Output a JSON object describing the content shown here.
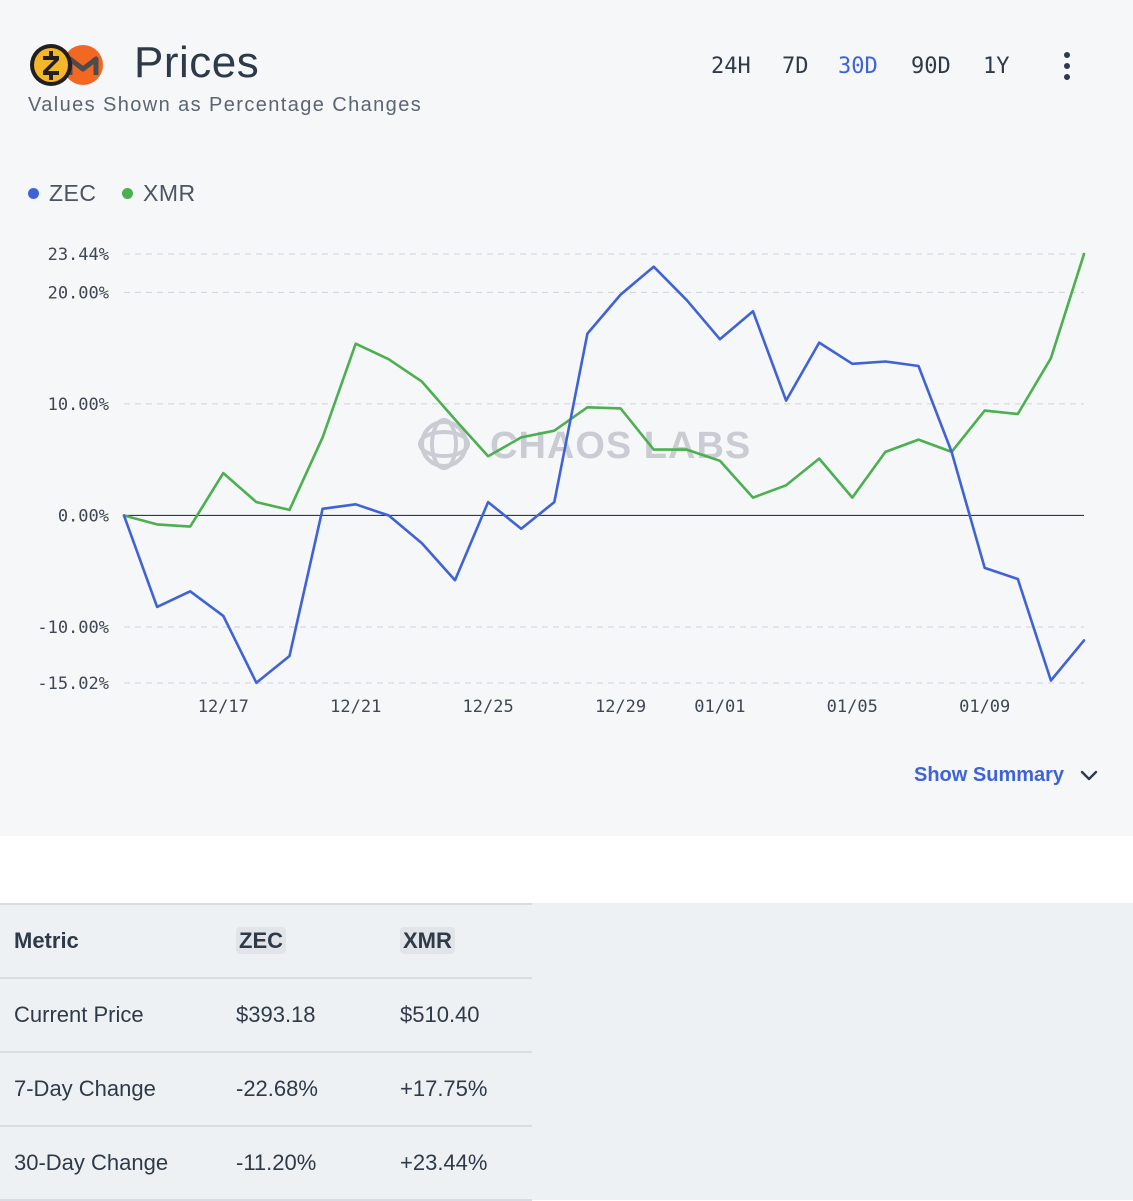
{
  "header": {
    "title": "Prices",
    "subtitle": "Values Shown as Percentage Changes",
    "ranges": [
      {
        "label": "24H",
        "active": false
      },
      {
        "label": "7D",
        "active": false
      },
      {
        "label": "30D",
        "active": true
      },
      {
        "label": "90D",
        "active": false
      },
      {
        "label": "1Y",
        "active": false
      }
    ]
  },
  "colors": {
    "zec": "#3f63d6",
    "xmr": "#4caf50",
    "accent": "#3f63d6",
    "zec_logo": "#f4b728",
    "xmr_logo": "#f26822"
  },
  "watermark": "CHAOS LABS",
  "summary": {
    "label": "Show Summary"
  },
  "chart_data": {
    "type": "line",
    "x": [
      "12/14",
      "12/15",
      "12/16",
      "12/17",
      "12/18",
      "12/19",
      "12/20",
      "12/21",
      "12/22",
      "12/23",
      "12/24",
      "12/25",
      "12/26",
      "12/27",
      "12/28",
      "12/29",
      "12/30",
      "12/31",
      "01/01",
      "01/02",
      "01/03",
      "01/04",
      "01/05",
      "01/06",
      "01/07",
      "01/08",
      "01/09",
      "01/10",
      "01/11",
      "01/12"
    ],
    "x_ticks": [
      "12/17",
      "12/21",
      "12/25",
      "12/29",
      "01/01",
      "01/05",
      "01/09"
    ],
    "y_ticks": [
      23.44,
      20.0,
      10.0,
      0.0,
      -10.0,
      -15.02
    ],
    "y_tick_labels": [
      "23.44%",
      "20.00%",
      "10.00%",
      "0.00%",
      "-10.00%",
      "-15.02%"
    ],
    "ylim": [
      -15.02,
      23.44
    ],
    "grid": true,
    "legend": "top-left",
    "title": "",
    "xlabel": "",
    "ylabel": "",
    "series": [
      {
        "name": "ZEC",
        "values": [
          0.0,
          -8.2,
          -6.8,
          -9.0,
          -15.0,
          -12.6,
          0.6,
          1.0,
          0.0,
          -2.5,
          -5.8,
          1.2,
          -1.2,
          1.2,
          16.3,
          19.8,
          22.3,
          19.3,
          15.8,
          18.3,
          10.3,
          15.5,
          13.6,
          13.8,
          13.4,
          5.7,
          -4.7,
          -5.7,
          -14.8,
          -11.2
        ]
      },
      {
        "name": "XMR",
        "values": [
          0.0,
          -0.8,
          -1.0,
          3.8,
          1.2,
          0.5,
          7.0,
          15.4,
          14.0,
          12.0,
          8.6,
          5.3,
          7.0,
          7.6,
          9.7,
          9.6,
          5.9,
          5.9,
          4.9,
          1.6,
          2.7,
          5.1,
          1.6,
          5.7,
          6.8,
          5.7,
          9.4,
          9.1,
          14.1,
          23.44
        ]
      }
    ]
  },
  "table": {
    "headers": [
      "Metric",
      "ZEC",
      "XMR"
    ],
    "rows": [
      [
        "Current Price",
        "$393.18",
        "$510.40"
      ],
      [
        "7-Day Change",
        "-22.68%",
        "+17.75%"
      ],
      [
        "30-Day Change",
        "-11.20%",
        "+23.44%"
      ]
    ]
  }
}
